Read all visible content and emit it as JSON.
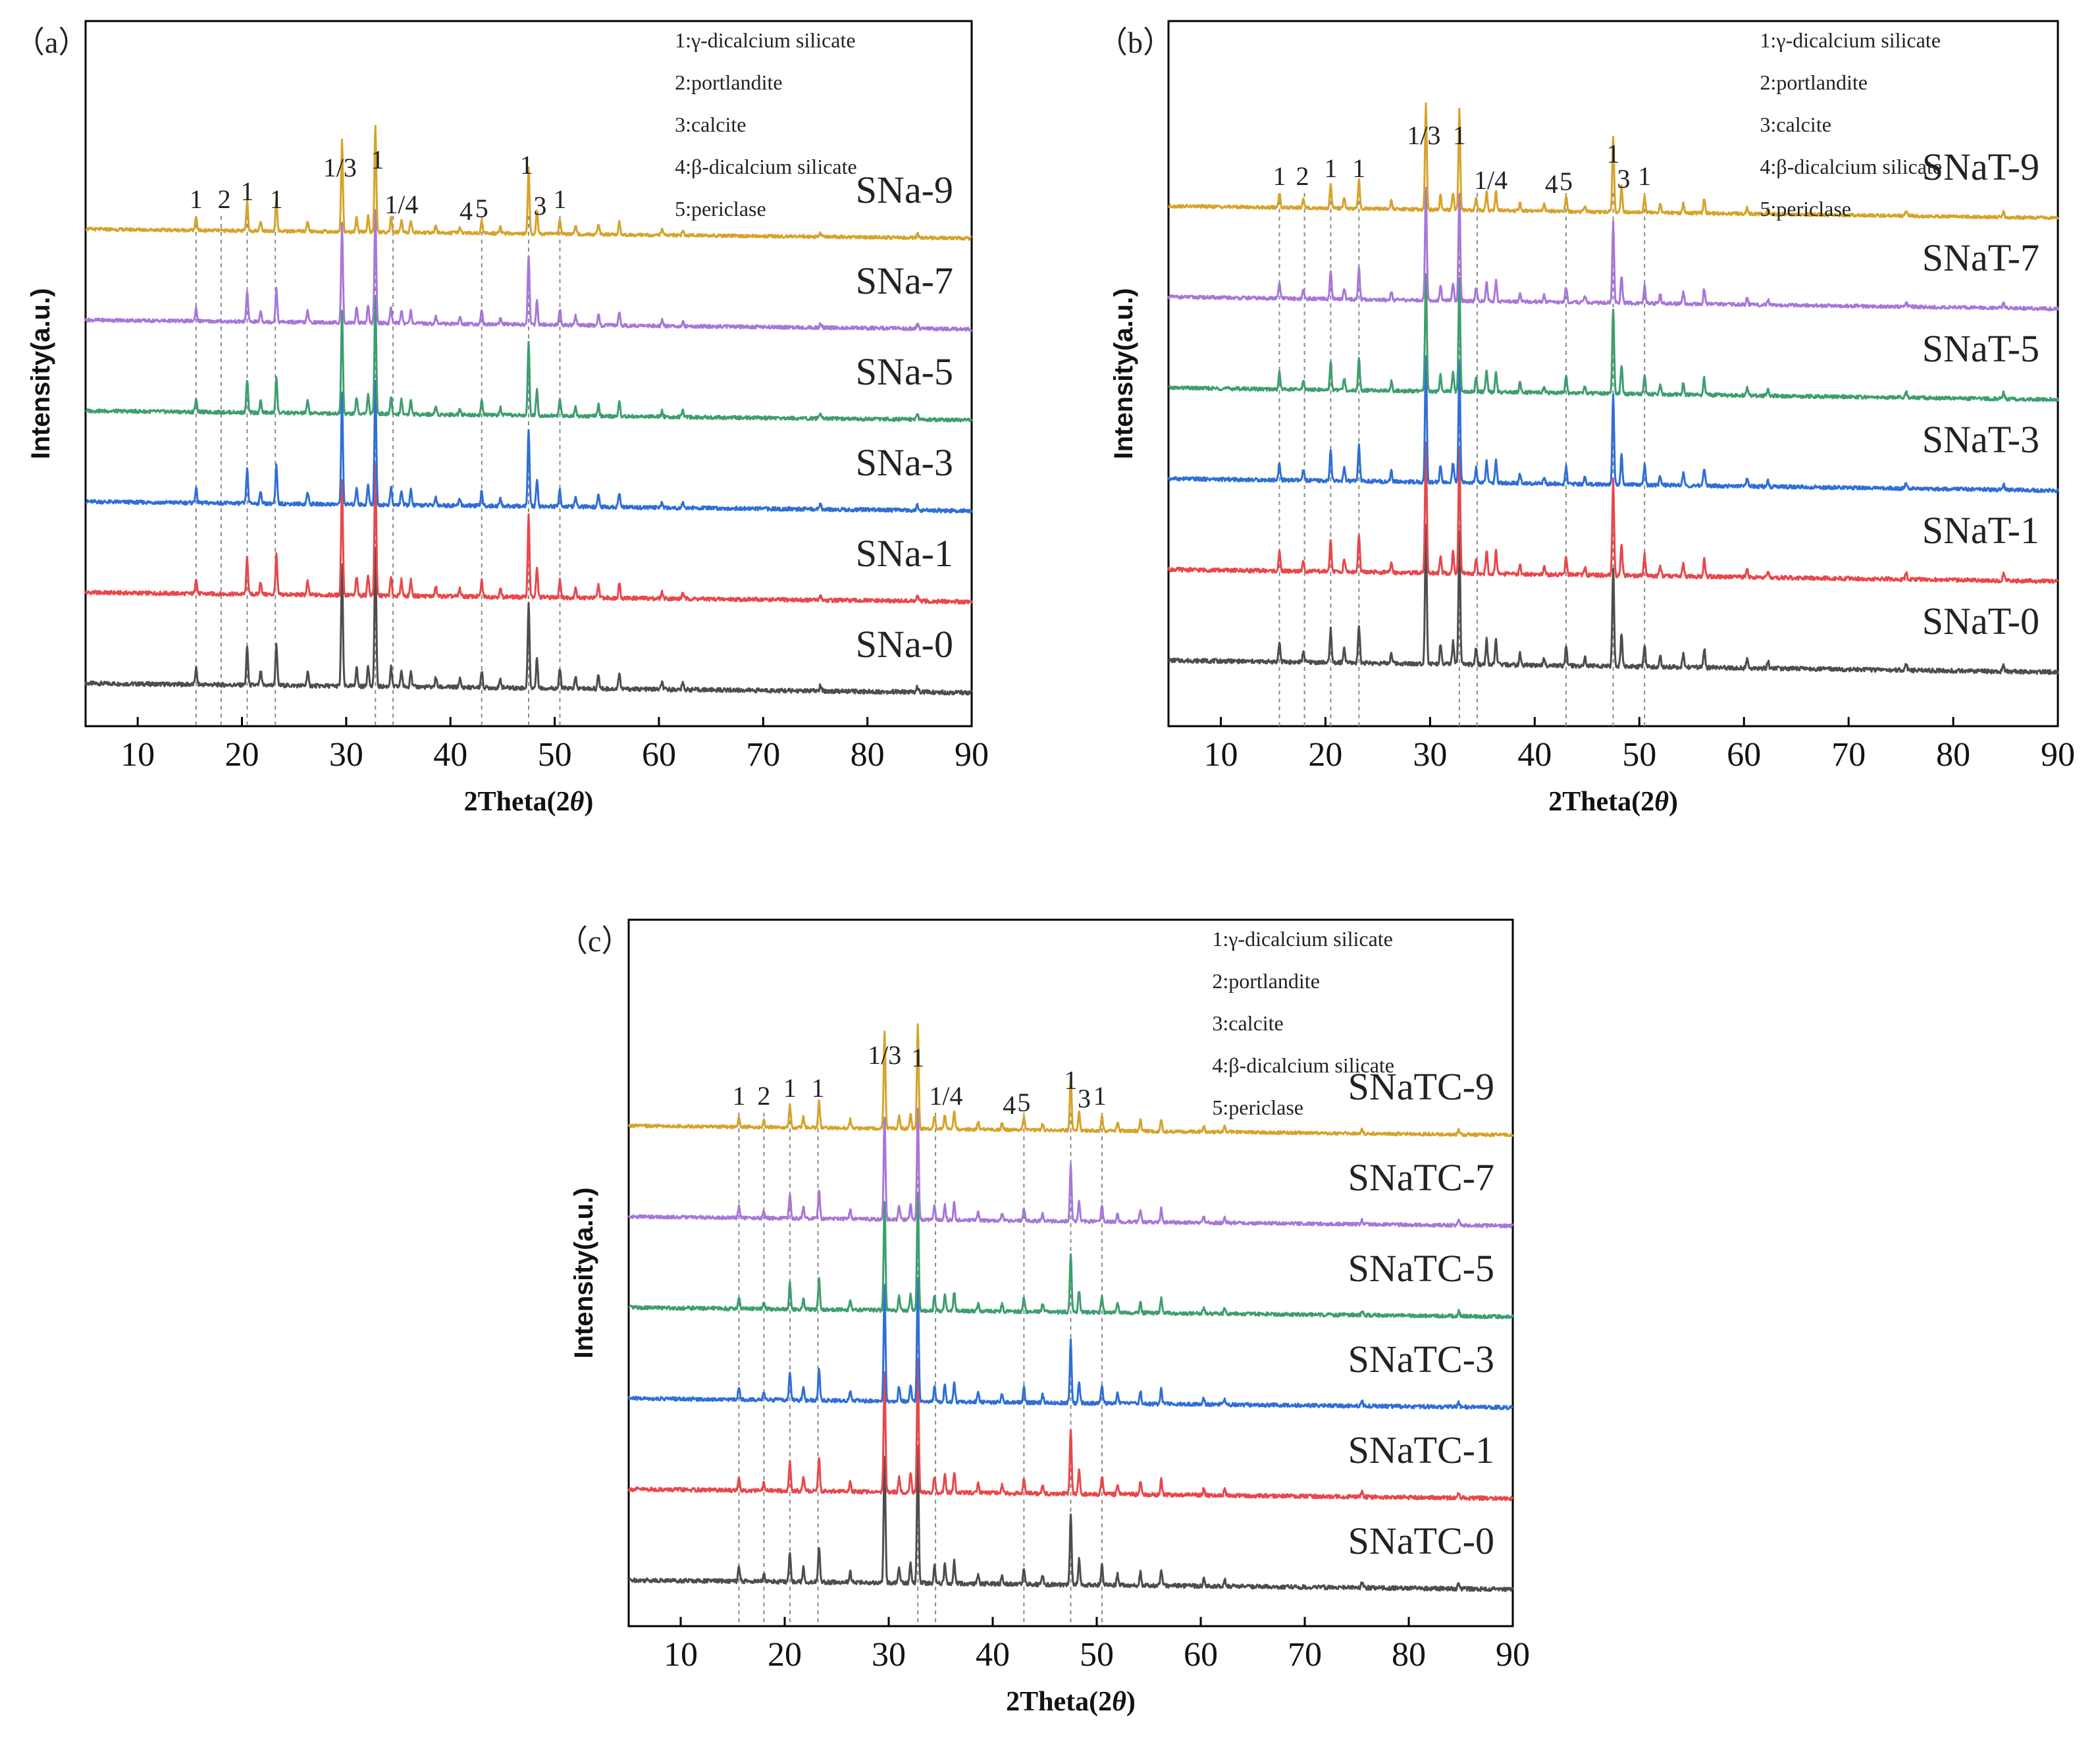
{
  "figure": {
    "x_axis_label_prefix": "2Theta(2",
    "x_axis_label_italic": "θ",
    "x_axis_label_suffix": ")",
    "y_axis_label": "Intensity(a.u.)",
    "legend": [
      "1:γ-dicalcium silicate",
      "2:portlandite",
      "3:calcite",
      "4:β-dicalcium silicate",
      "5:periclase"
    ]
  },
  "chart_data": [
    {
      "type": "line",
      "panel_label": "（a）",
      "title": "",
      "xlabel": "2Theta(2θ)",
      "ylabel": "Intensity(a.u.)",
      "xlim": [
        5,
        90
      ],
      "xticks": [
        10,
        20,
        30,
        40,
        50,
        60,
        70,
        80,
        90
      ],
      "reference_lines_2theta": [
        15.6,
        18.0,
        20.5,
        23.2,
        32.8,
        34.5,
        43.0,
        47.5,
        50.5
      ],
      "peak_labels": [
        {
          "text": "1",
          "x": 15.6,
          "dy": 0
        },
        {
          "text": "2",
          "x": 18.3,
          "dy": 0
        },
        {
          "text": "1",
          "x": 20.5,
          "dy": 12
        },
        {
          "text": "1",
          "x": 23.3,
          "dy": 0
        },
        {
          "text": "1/3",
          "x": 29.4,
          "dy": 48
        },
        {
          "text": "1",
          "x": 33.0,
          "dy": 60
        },
        {
          "text": "1/4",
          "x": 35.3,
          "dy": -8
        },
        {
          "text": "4",
          "x": 41.5,
          "dy": -18
        },
        {
          "text": "5",
          "x": 43.0,
          "dy": -14
        },
        {
          "text": "1",
          "x": 47.3,
          "dy": 52
        },
        {
          "text": "3",
          "x": 48.6,
          "dy": -10
        },
        {
          "text": "1",
          "x": 50.5,
          "dy": 0
        }
      ],
      "series": [
        {
          "name": "SNa-0",
          "color": "#4d4d4d"
        },
        {
          "name": "SNa-1",
          "color": "#e8474c"
        },
        {
          "name": "SNa-3",
          "color": "#2f6fd6"
        },
        {
          "name": "SNa-5",
          "color": "#3e9e6e"
        },
        {
          "name": "SNa-7",
          "color": "#a777d8"
        },
        {
          "name": "SNa-9",
          "color": "#d6a32a"
        }
      ],
      "peaks": [
        {
          "two_theta": 15.6,
          "rel": 0.12
        },
        {
          "two_theta": 20.5,
          "rel": 0.28
        },
        {
          "two_theta": 21.8,
          "rel": 0.1
        },
        {
          "two_theta": 23.3,
          "rel": 0.3
        },
        {
          "two_theta": 26.3,
          "rel": 0.1
        },
        {
          "two_theta": 29.6,
          "rel": 0.88
        },
        {
          "two_theta": 31.0,
          "rel": 0.14
        },
        {
          "two_theta": 32.1,
          "rel": 0.16
        },
        {
          "two_theta": 32.8,
          "rel": 1.0
        },
        {
          "two_theta": 34.3,
          "rel": 0.14
        },
        {
          "two_theta": 35.3,
          "rel": 0.12
        },
        {
          "two_theta": 36.2,
          "rel": 0.12
        },
        {
          "two_theta": 38.6,
          "rel": 0.07
        },
        {
          "two_theta": 40.9,
          "rel": 0.06
        },
        {
          "two_theta": 43.0,
          "rel": 0.12
        },
        {
          "two_theta": 44.8,
          "rel": 0.06
        },
        {
          "two_theta": 47.5,
          "rel": 0.62
        },
        {
          "two_theta": 48.3,
          "rel": 0.22
        },
        {
          "two_theta": 50.5,
          "rel": 0.14
        },
        {
          "two_theta": 52.0,
          "rel": 0.08
        },
        {
          "two_theta": 54.2,
          "rel": 0.1
        },
        {
          "two_theta": 56.2,
          "rel": 0.12
        },
        {
          "two_theta": 60.3,
          "rel": 0.05
        },
        {
          "two_theta": 62.3,
          "rel": 0.05
        },
        {
          "two_theta": 75.5,
          "rel": 0.04
        },
        {
          "two_theta": 84.8,
          "rel": 0.04
        }
      ]
    },
    {
      "type": "line",
      "panel_label": "（b）",
      "title": "",
      "xlabel": "2Theta(2θ)",
      "ylabel": "Intensity(a.u.)",
      "xlim": [
        5,
        90
      ],
      "xticks": [
        10,
        20,
        30,
        40,
        50,
        60,
        70,
        80,
        90
      ],
      "reference_lines_2theta": [
        15.6,
        18.0,
        20.5,
        23.2,
        32.8,
        34.5,
        43.0,
        47.5,
        50.5
      ],
      "peak_labels": [
        {
          "text": "1",
          "x": 15.6,
          "dy": 0
        },
        {
          "text": "2",
          "x": 17.8,
          "dy": 0
        },
        {
          "text": "1",
          "x": 20.5,
          "dy": 12
        },
        {
          "text": "1",
          "x": 23.2,
          "dy": 12
        },
        {
          "text": "1/3",
          "x": 29.4,
          "dy": 62
        },
        {
          "text": "1",
          "x": 32.8,
          "dy": 62
        },
        {
          "text": "1/4",
          "x": 35.8,
          "dy": -6
        },
        {
          "text": "4",
          "x": 41.6,
          "dy": -12
        },
        {
          "text": "5",
          "x": 43.0,
          "dy": -8
        },
        {
          "text": "1",
          "x": 47.5,
          "dy": 34
        },
        {
          "text": "3",
          "x": 48.5,
          "dy": -4
        },
        {
          "text": "1",
          "x": 50.5,
          "dy": 0
        }
      ],
      "series": [
        {
          "name": "SNaT-0",
          "color": "#4d4d4d"
        },
        {
          "name": "SNaT-1",
          "color": "#e8474c"
        },
        {
          "name": "SNaT-3",
          "color": "#2f6fd6"
        },
        {
          "name": "SNaT-5",
          "color": "#3e9e6e"
        },
        {
          "name": "SNaT-7",
          "color": "#a777d8"
        },
        {
          "name": "SNaT-9",
          "color": "#d6a32a"
        }
      ],
      "peaks": [
        {
          "two_theta": 15.6,
          "rel": 0.14
        },
        {
          "two_theta": 17.9,
          "rel": 0.08
        },
        {
          "two_theta": 20.5,
          "rel": 0.24
        },
        {
          "two_theta": 21.8,
          "rel": 0.1
        },
        {
          "two_theta": 23.2,
          "rel": 0.28
        },
        {
          "two_theta": 26.3,
          "rel": 0.08
        },
        {
          "two_theta": 29.6,
          "rel": 1.0
        },
        {
          "two_theta": 31.0,
          "rel": 0.14
        },
        {
          "two_theta": 32.2,
          "rel": 0.16
        },
        {
          "two_theta": 32.8,
          "rel": 0.95
        },
        {
          "two_theta": 34.4,
          "rel": 0.12
        },
        {
          "two_theta": 35.4,
          "rel": 0.18
        },
        {
          "two_theta": 36.3,
          "rel": 0.18
        },
        {
          "two_theta": 38.6,
          "rel": 0.08
        },
        {
          "two_theta": 40.9,
          "rel": 0.06
        },
        {
          "two_theta": 43.0,
          "rel": 0.14
        },
        {
          "two_theta": 44.8,
          "rel": 0.06
        },
        {
          "two_theta": 47.5,
          "rel": 0.72
        },
        {
          "two_theta": 48.3,
          "rel": 0.24
        },
        {
          "two_theta": 50.5,
          "rel": 0.16
        },
        {
          "two_theta": 52.0,
          "rel": 0.08
        },
        {
          "two_theta": 54.2,
          "rel": 0.1
        },
        {
          "two_theta": 56.2,
          "rel": 0.14
        },
        {
          "two_theta": 60.3,
          "rel": 0.06
        },
        {
          "two_theta": 62.3,
          "rel": 0.05
        },
        {
          "two_theta": 75.5,
          "rel": 0.05
        },
        {
          "two_theta": 84.8,
          "rel": 0.05
        }
      ]
    },
    {
      "type": "line",
      "panel_label": "（c）",
      "title": "",
      "xlabel": "2Theta(2θ)",
      "ylabel": "Intensity(a.u.)",
      "xlim": [
        5,
        90
      ],
      "xticks": [
        10,
        20,
        30,
        40,
        50,
        60,
        70,
        80,
        90
      ],
      "reference_lines_2theta": [
        15.6,
        18.0,
        20.5,
        23.2,
        32.8,
        34.5,
        43.0,
        47.5,
        50.5
      ],
      "peak_labels": [
        {
          "text": "1",
          "x": 15.6,
          "dy": 0
        },
        {
          "text": "2",
          "x": 18.0,
          "dy": 0
        },
        {
          "text": "1",
          "x": 20.5,
          "dy": 12
        },
        {
          "text": "1",
          "x": 23.2,
          "dy": 12
        },
        {
          "text": "1/3",
          "x": 29.6,
          "dy": 62
        },
        {
          "text": "1",
          "x": 32.8,
          "dy": 58
        },
        {
          "text": "1/4",
          "x": 35.5,
          "dy": 0
        },
        {
          "text": "4",
          "x": 41.6,
          "dy": -14
        },
        {
          "text": "5",
          "x": 43.0,
          "dy": -10
        },
        {
          "text": "1",
          "x": 47.5,
          "dy": 24
        },
        {
          "text": "3",
          "x": 48.8,
          "dy": -4
        },
        {
          "text": "1",
          "x": 50.3,
          "dy": 0
        }
      ],
      "series": [
        {
          "name": "SNaTC-0",
          "color": "#4d4d4d"
        },
        {
          "name": "SNaTC-1",
          "color": "#e8474c"
        },
        {
          "name": "SNaTC-3",
          "color": "#2f6fd6"
        },
        {
          "name": "SNaTC-5",
          "color": "#3e9e6e"
        },
        {
          "name": "SNaTC-7",
          "color": "#a777d8"
        },
        {
          "name": "SNaTC-9",
          "color": "#d6a32a"
        }
      ],
      "peaks": [
        {
          "two_theta": 15.6,
          "rel": 0.1
        },
        {
          "two_theta": 18.0,
          "rel": 0.06
        },
        {
          "two_theta": 20.5,
          "rel": 0.22
        },
        {
          "two_theta": 21.8,
          "rel": 0.1
        },
        {
          "two_theta": 23.3,
          "rel": 0.26
        },
        {
          "two_theta": 26.3,
          "rel": 0.08
        },
        {
          "two_theta": 29.6,
          "rel": 0.92
        },
        {
          "two_theta": 31.0,
          "rel": 0.12
        },
        {
          "two_theta": 32.1,
          "rel": 0.14
        },
        {
          "two_theta": 32.8,
          "rel": 1.0
        },
        {
          "two_theta": 34.4,
          "rel": 0.12
        },
        {
          "two_theta": 35.4,
          "rel": 0.14
        },
        {
          "two_theta": 36.3,
          "rel": 0.16
        },
        {
          "two_theta": 38.6,
          "rel": 0.07
        },
        {
          "two_theta": 40.9,
          "rel": 0.06
        },
        {
          "two_theta": 43.0,
          "rel": 0.12
        },
        {
          "two_theta": 44.8,
          "rel": 0.06
        },
        {
          "two_theta": 47.5,
          "rel": 0.5
        },
        {
          "two_theta": 48.3,
          "rel": 0.18
        },
        {
          "two_theta": 50.5,
          "rel": 0.14
        },
        {
          "two_theta": 52.0,
          "rel": 0.08
        },
        {
          "two_theta": 54.2,
          "rel": 0.1
        },
        {
          "two_theta": 56.2,
          "rel": 0.12
        },
        {
          "two_theta": 60.3,
          "rel": 0.05
        },
        {
          "two_theta": 62.3,
          "rel": 0.05
        },
        {
          "two_theta": 75.5,
          "rel": 0.04
        },
        {
          "two_theta": 84.8,
          "rel": 0.04
        }
      ]
    }
  ]
}
